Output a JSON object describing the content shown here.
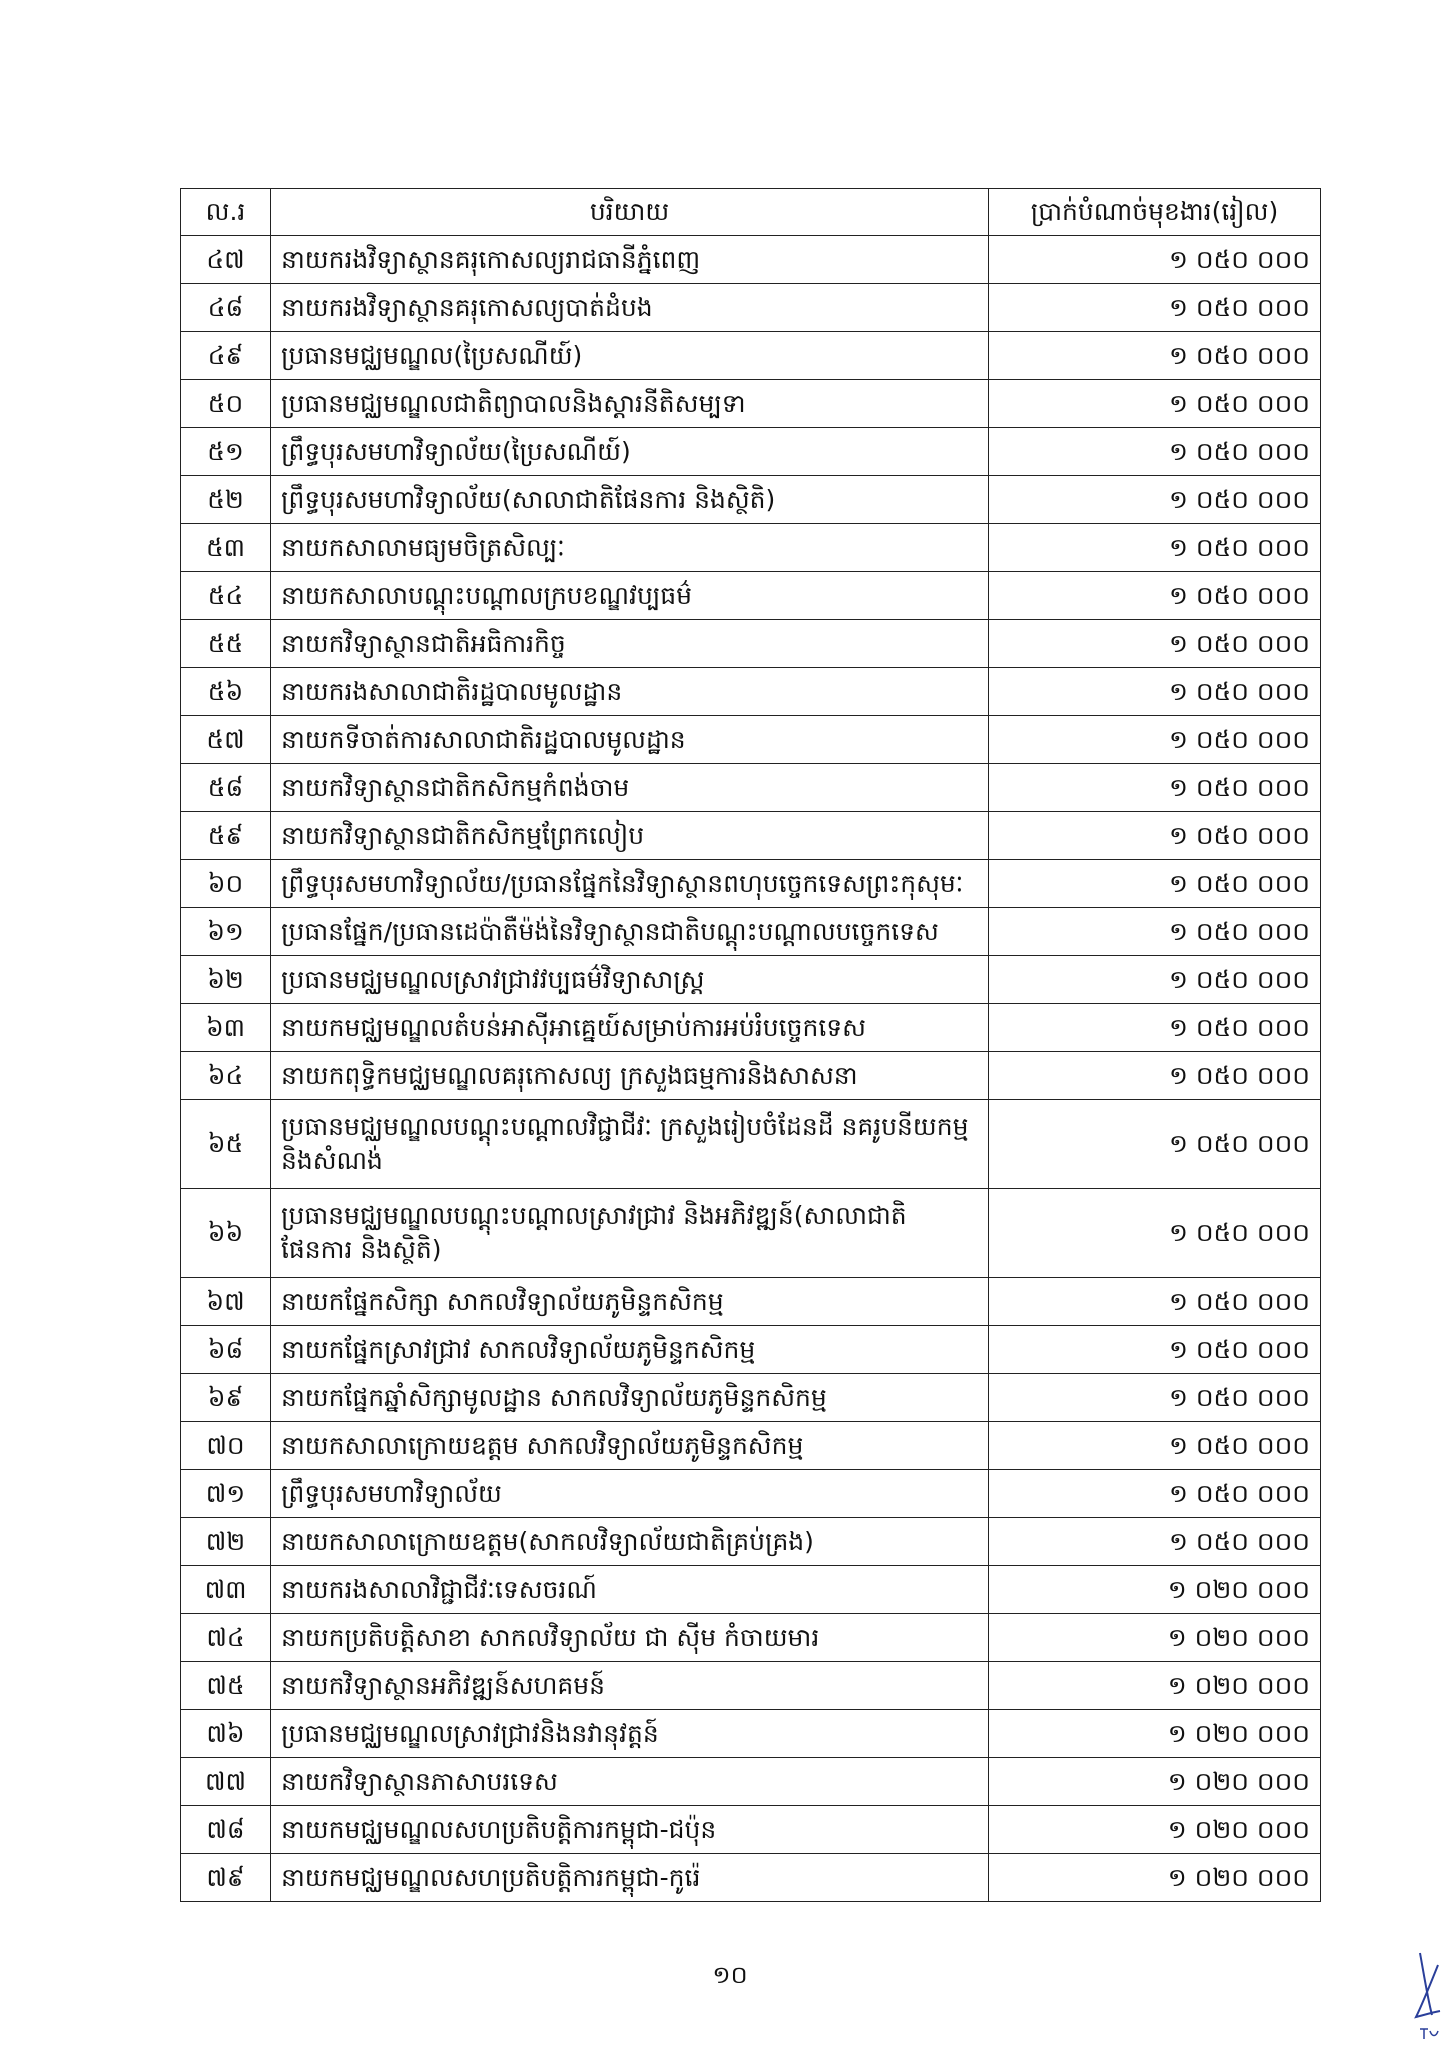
{
  "table": {
    "headers": [
      "ល.រ",
      "បរិយាយ",
      "ប្រាក់បំណាច់មុខងារ(រៀល)"
    ],
    "rows": [
      {
        "no": "៤៧",
        "desc": "នាយករងវិទ្យាស្ថានគរុកោសល្យរាជធានីភ្នំពេញ",
        "amount": "១ ០៥០ ០០០"
      },
      {
        "no": "៤៨",
        "desc": "នាយករងវិទ្យាស្ថានគរុកោសល្យបាត់ដំបង",
        "amount": "១ ០៥០ ០០០"
      },
      {
        "no": "៤៩",
        "desc": "ប្រធានមជ្ឈមណ្ឌល(ប្រៃសណីយ៍)",
        "amount": "១ ០៥០ ០០០"
      },
      {
        "no": "៥០",
        "desc": "ប្រធានមជ្ឈមណ្ឌលជាតិព្យាបាលនិងស្តារនីតិសម្បទា",
        "amount": "១ ០៥០ ០០០"
      },
      {
        "no": "៥១",
        "desc": "ព្រឹទ្ធបុរសមហាវិទ្យាល័យ(ប្រៃសណីយ៍)",
        "amount": "១ ០៥០ ០០០"
      },
      {
        "no": "៥២",
        "desc": "ព្រឹទ្ធបុរសមហាវិទ្យាល័យ(សាលាជាតិផែនការ និងស្ថិតិ)",
        "amount": "១ ០៥០ ០០០"
      },
      {
        "no": "៥៣",
        "desc": "នាយកសាលាមធ្យមចិត្រសិល្បៈ",
        "amount": "១ ០៥០ ០០០"
      },
      {
        "no": "៥៤",
        "desc": "នាយកសាលាបណ្តុះបណ្តាលក្របខណ្ឌវប្បធម៌",
        "amount": "១ ០៥០ ០០០"
      },
      {
        "no": "៥៥",
        "desc": "នាយកវិទ្យាស្ថានជាតិអធិការកិច្ច",
        "amount": "១ ០៥០ ០០០"
      },
      {
        "no": "៥៦",
        "desc": "នាយករងសាលាជាតិរដ្ឋបាលមូលដ្ឋាន",
        "amount": "១ ០៥០ ០០០"
      },
      {
        "no": "៥៧",
        "desc": "នាយកទីចាត់ការសាលាជាតិរដ្ឋបាលមូលដ្ឋាន",
        "amount": "១ ០៥០ ០០០"
      },
      {
        "no": "៥៨",
        "desc": "នាយកវិទ្យាស្ថានជាតិកសិកម្មកំពង់ចាម",
        "amount": "១ ០៥០ ០០០"
      },
      {
        "no": "៥៩",
        "desc": "នាយកវិទ្យាស្ថានជាតិកសិកម្មព្រែកលៀប",
        "amount": "១ ០៥០ ០០០"
      },
      {
        "no": "៦០",
        "desc": "ព្រឹទ្ធបុរសមហាវិទ្យាល័យ/ប្រធានផ្នែកនៃវិទ្យាស្ថានពហុបច្ចេកទេសព្រះកុសុមៈ",
        "amount": "១ ០៥០ ០០០"
      },
      {
        "no": "៦១",
        "desc": "ប្រធានផ្នែក/ប្រធានដេប៉ាតឺម៉ង់នៃវិទ្យាស្ថានជាតិបណ្តុះបណ្តាលបច្ចេកទេស",
        "amount": "១ ០៥០ ០០០"
      },
      {
        "no": "៦២",
        "desc": "ប្រធានមជ្ឈមណ្ឌលស្រាវជ្រាវវប្បធម៌វិទ្យាសាស្ត្រ",
        "amount": "១ ០៥០ ០០០"
      },
      {
        "no": "៦៣",
        "desc": "នាយកមជ្ឈមណ្ឌលតំបន់អាស៊ីអាគ្នេយ៍សម្រាប់ការអប់រំបច្ចេកទេស",
        "amount": "១ ០៥០ ០០០"
      },
      {
        "no": "៦៤",
        "desc": "នាយកពុទ្ធិកមជ្ឈមណ្ឌលគរុកោសល្យ ក្រសួងធម្មការនិងសាសនា",
        "amount": "១ ០៥០ ០០០"
      },
      {
        "no": "៦៥",
        "desc": "ប្រធានមជ្ឈមណ្ឌលបណ្តុះបណ្តាលវិជ្ជាជីវៈ ក្រសួងរៀបចំដែនដី នគរូបនីយកម្ម និងសំណង់",
        "amount": "១ ០៥០ ០០០",
        "tall": true
      },
      {
        "no": "៦៦",
        "desc": "ប្រធានមជ្ឈមណ្ឌលបណ្តុះបណ្តាលស្រាវជ្រាវ និងអភិវឌ្ឍន៍(សាលាជាតិផែនការ និងស្ថិតិ)",
        "amount": "១ ០៥០ ០០០",
        "tall": true
      },
      {
        "no": "៦៧",
        "desc": "នាយកផ្នែកសិក្សា សាកលវិទ្យាល័យភូមិន្ទកសិកម្ម",
        "amount": "១ ០៥០ ០០០"
      },
      {
        "no": "៦៨",
        "desc": "នាយកផ្នែកស្រាវជ្រាវ សាកលវិទ្យាល័យភូមិន្ទកសិកម្ម",
        "amount": "១ ០៥០ ០០០"
      },
      {
        "no": "៦៩",
        "desc": "នាយកផ្នែកឆ្នាំសិក្សាមូលដ្ឋាន សាកលវិទ្យាល័យភូមិន្ទកសិកម្ម",
        "amount": "១ ០៥០ ០០០"
      },
      {
        "no": "៧០",
        "desc": "នាយកសាលាក្រោយឧត្តម សាកលវិទ្យាល័យភូមិន្ទកសិកម្ម",
        "amount": "១ ០៥០ ០០០"
      },
      {
        "no": "៧១",
        "desc": "ព្រឹទ្ធបុរសមហាវិទ្យាល័យ",
        "amount": "១ ០៥០ ០០០"
      },
      {
        "no": "៧២",
        "desc": "នាយកសាលាក្រោយឧត្តម(សាកលវិទ្យាល័យជាតិគ្រប់គ្រង)",
        "amount": "១ ០៥០ ០០០"
      },
      {
        "no": "៧៣",
        "desc": "នាយករងសាលាវិជ្ជាជីវៈទេសចរណ៍",
        "amount": "១ ០២០ ០០០"
      },
      {
        "no": "៧៤",
        "desc": "នាយកប្រតិបត្តិសាខា សាកលវិទ្យាល័យ ជា ស៊ីម កំចាយមារ",
        "amount": "១ ០២០ ០០០"
      },
      {
        "no": "៧៥",
        "desc": "នាយកវិទ្យាស្ថានអភិវឌ្ឍន៍សហគមន៍",
        "amount": "១ ០២០ ០០០"
      },
      {
        "no": "៧៦",
        "desc": "ប្រធានមជ្ឈមណ្ឌលស្រាវជ្រាវនិងនវានុវត្តន៍",
        "amount": "១ ០២០ ០០០"
      },
      {
        "no": "៧៧",
        "desc": "នាយកវិទ្យាស្ថានភាសាបរទេស",
        "amount": "១ ០២០ ០០០"
      },
      {
        "no": "៧៨",
        "desc": "នាយកមជ្ឈមណ្ឌលសហប្រតិបត្តិការកម្ពុជា-ជប៉ុន",
        "amount": "១ ០២០ ០០០"
      },
      {
        "no": "៧៩",
        "desc": "នាយកមជ្ឈមណ្ឌលសហប្រតិបត្តិការកម្ពុជា-កូរ៉េ",
        "amount": "១ ០២០ ០០០"
      }
    ]
  },
  "page_number": "១០",
  "signature_color": "#2a3f9a"
}
